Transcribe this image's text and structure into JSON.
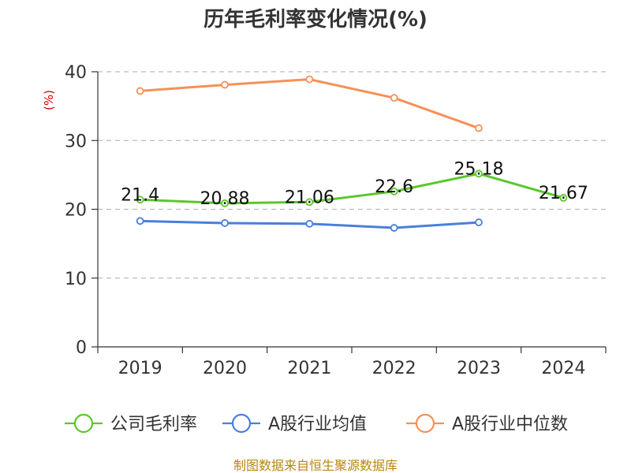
{
  "chart_data": {
    "type": "line",
    "title": "历年毛利率变化情况(%)",
    "ylabel": "(%)",
    "xlabel": "",
    "categories": [
      "2019",
      "2020",
      "2021",
      "2022",
      "2023",
      "2024"
    ],
    "ylim": [
      0,
      40
    ],
    "yticks": [
      "0",
      "10",
      "20",
      "30",
      "40"
    ],
    "grid": true,
    "legend_position": "bottom",
    "series": [
      {
        "name": "公司毛利率",
        "color": "#5bc72c",
        "values": [
          21.4,
          20.88,
          21.06,
          22.6,
          25.18,
          21.67
        ],
        "labels": [
          "21.4",
          "20.88",
          "21.06",
          "22.6",
          "25.18",
          "21.67"
        ]
      },
      {
        "name": "A股行业均值",
        "color": "#4a7fdc",
        "values": [
          18.3,
          18.0,
          17.9,
          17.3,
          18.1,
          null
        ]
      },
      {
        "name": "A股行业中位数",
        "color": "#f69058",
        "values": [
          37.2,
          38.1,
          38.9,
          36.2,
          31.8,
          null
        ]
      }
    ],
    "source": "制图数据来自恒生聚源数据库"
  }
}
